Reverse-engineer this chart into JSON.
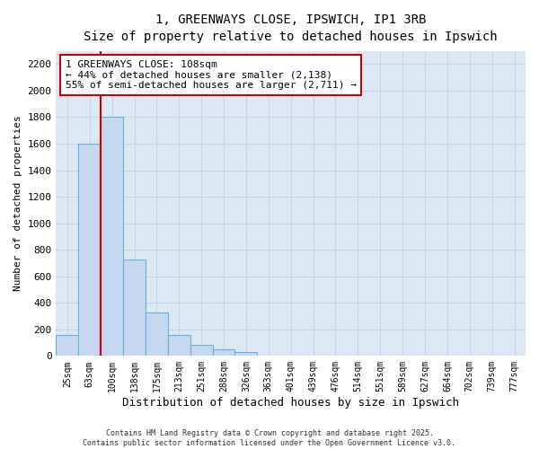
{
  "title": "1, GREENWAYS CLOSE, IPSWICH, IP1 3RB",
  "subtitle": "Size of property relative to detached houses in Ipswich",
  "xlabel": "Distribution of detached houses by size in Ipswich",
  "ylabel": "Number of detached properties",
  "bar_color": "#c5d8f0",
  "bar_edge_color": "#6baed6",
  "axes_bg_color": "#dde8f5",
  "figure_bg_color": "#ffffff",
  "grid_color": "#c8d4e8",
  "categories": [
    "25sqm",
    "63sqm",
    "100sqm",
    "138sqm",
    "175sqm",
    "213sqm",
    "251sqm",
    "288sqm",
    "326sqm",
    "363sqm",
    "401sqm",
    "439sqm",
    "476sqm",
    "514sqm",
    "551sqm",
    "589sqm",
    "627sqm",
    "664sqm",
    "702sqm",
    "739sqm",
    "777sqm"
  ],
  "values": [
    160,
    1600,
    1800,
    730,
    325,
    160,
    85,
    50,
    30,
    0,
    0,
    0,
    0,
    0,
    0,
    0,
    0,
    0,
    0,
    0,
    0
  ],
  "ylim": [
    0,
    2300
  ],
  "yticks": [
    0,
    200,
    400,
    600,
    800,
    1000,
    1200,
    1400,
    1600,
    1800,
    2000,
    2200
  ],
  "red_line_x": 1.5,
  "annotation_text": "1 GREENWAYS CLOSE: 108sqm\n← 44% of detached houses are smaller (2,138)\n55% of semi-detached houses are larger (2,711) →",
  "annotation_box_color": "#ffffff",
  "annotation_border_color": "#cc0000",
  "red_line_color": "#cc0000",
  "footer_line1": "Contains HM Land Registry data © Crown copyright and database right 2025.",
  "footer_line2": "Contains public sector information licensed under the Open Government Licence v3.0."
}
